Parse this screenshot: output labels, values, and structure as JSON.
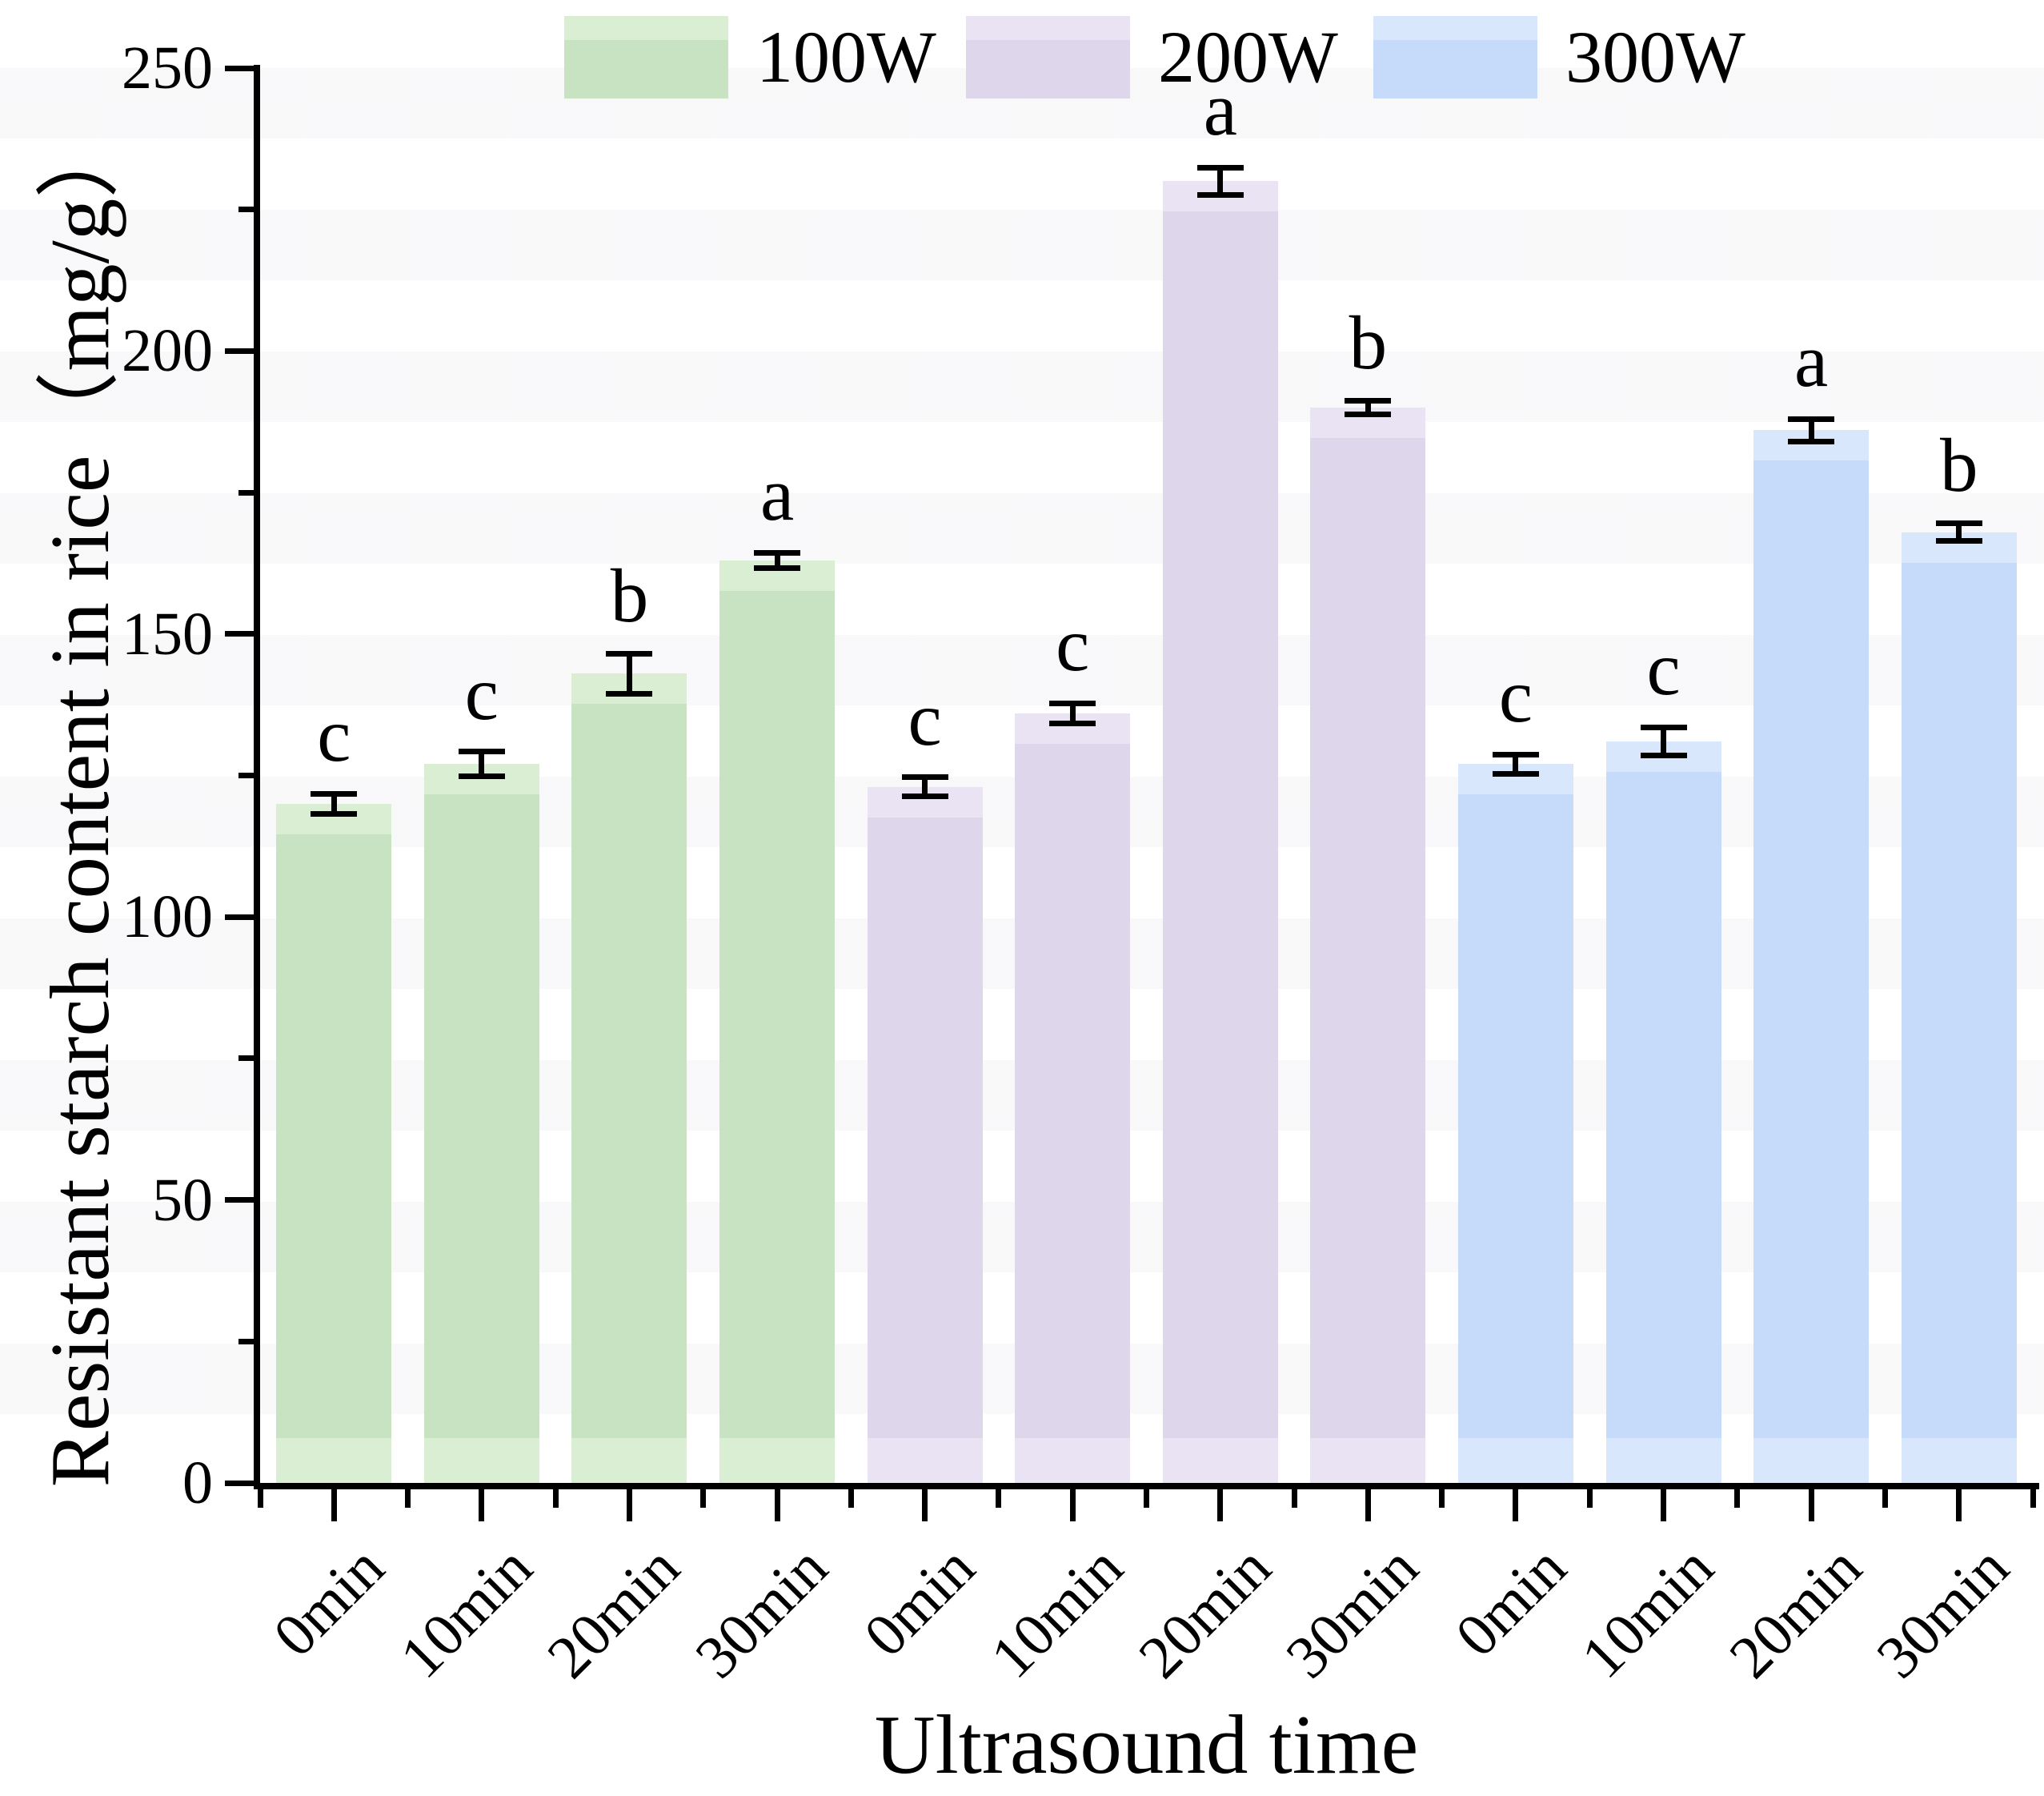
{
  "figure": {
    "x_title": "Ultrasound time",
    "y_title": "Resistant starch content in rice（mg/g）"
  },
  "legend": {
    "position": "top",
    "items": [
      {
        "label": "100W",
        "color": "#c7e3c1",
        "light": "#d9eed3"
      },
      {
        "label": "200W",
        "color": "#ded6ea",
        "light": "#e9e3f3"
      },
      {
        "label": "300W",
        "color": "#c6dbf9",
        "light": "#d8e7fc"
      }
    ]
  },
  "y_axis": {
    "title": "Resistant starch content in rice（mg/g）",
    "min": 0,
    "max": 250,
    "major_step": 50,
    "minor_step": 25,
    "major_labels": [
      "0",
      "50",
      "100",
      "150",
      "200",
      "250"
    ]
  },
  "x_axis": {
    "title": "Ultrasound time",
    "labels": [
      "0min",
      "10min",
      "20min",
      "30min",
      "0min",
      "10min",
      "20min",
      "30min",
      "0min",
      "10min",
      "20min",
      "30min"
    ]
  },
  "chart_data": {
    "type": "bar",
    "title": "",
    "xlabel": "Ultrasound time",
    "ylabel": "Resistant starch content in rice（mg/g）",
    "ylim": [
      0,
      250
    ],
    "grid": false,
    "legend_position": "top",
    "categories": [
      "0min",
      "10min",
      "20min",
      "30min"
    ],
    "series": [
      {
        "name": "100W",
        "color": "#c7e3c1",
        "values": [
          120,
          127,
          143,
          163
        ],
        "errors": [
          1.8,
          2.2,
          3.5,
          1.4
        ],
        "sig_letters": [
          "c",
          "c",
          "b",
          "a"
        ]
      },
      {
        "name": "200W",
        "color": "#ded6ea",
        "values": [
          123,
          136,
          230,
          190
        ],
        "errors": [
          1.7,
          1.8,
          2.4,
          1.2
        ],
        "sig_letters": [
          "c",
          "c",
          "a",
          "b"
        ]
      },
      {
        "name": "300W",
        "color": "#c6dbf9",
        "values": [
          127,
          131,
          186,
          168
        ],
        "errors": [
          1.7,
          2.5,
          2.0,
          1.5
        ],
        "sig_letters": [
          "c",
          "c",
          "a",
          "b"
        ]
      }
    ]
  }
}
